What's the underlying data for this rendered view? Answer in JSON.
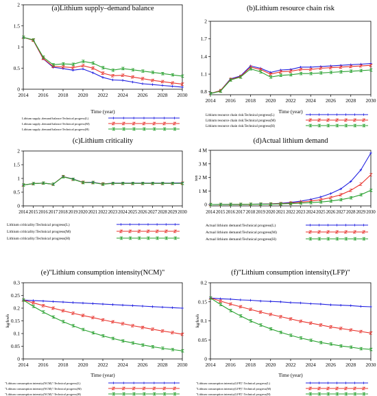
{
  "colors": {
    "L": "#1f1fe0",
    "M": "#e8312a",
    "H": "#27a02e",
    "axis": "#000000"
  },
  "chart_data": [
    {
      "id": "a",
      "type": "line",
      "title": "(a)Lithium supply–demand balance",
      "xlabel": "Time (year)",
      "ylabel": "",
      "xlim": [
        2014,
        2030
      ],
      "ylim": [
        0,
        2
      ],
      "xticks": [
        "2014",
        "2016",
        "2018",
        "2020",
        "2022",
        "2024",
        "2026",
        "2028",
        "2030"
      ],
      "yticks": [
        "0",
        "0.5",
        "1",
        "1.5",
        "2"
      ],
      "legend_position": "below",
      "series": [
        {
          "name": "Lithium supply–demand balance:Technical progress(L)",
          "key": "L",
          "marker": "1",
          "x": [
            2014,
            2015,
            2016,
            2017,
            2018,
            2019,
            2020,
            2021,
            2022,
            2023,
            2024,
            2025,
            2026,
            2027,
            2028,
            2029,
            2030
          ],
          "y": [
            1.23,
            1.16,
            0.72,
            0.52,
            0.49,
            0.45,
            0.48,
            0.39,
            0.28,
            0.22,
            0.21,
            0.17,
            0.13,
            0.11,
            0.09,
            0.07,
            0.05
          ]
        },
        {
          "name": "Lithium supply–demand balance:Technical progress(M)",
          "key": "M",
          "marker": "2",
          "x": [
            2014,
            2015,
            2016,
            2017,
            2018,
            2019,
            2020,
            2021,
            2022,
            2023,
            2024,
            2025,
            2026,
            2027,
            2028,
            2029,
            2030
          ],
          "y": [
            1.23,
            1.16,
            0.73,
            0.54,
            0.53,
            0.51,
            0.56,
            0.5,
            0.38,
            0.32,
            0.33,
            0.29,
            0.25,
            0.21,
            0.18,
            0.15,
            0.12
          ]
        },
        {
          "name": "Lithium supply–demand balance:Technical progress(H)",
          "key": "H",
          "marker": "3",
          "x": [
            2014,
            2015,
            2016,
            2017,
            2018,
            2019,
            2020,
            2021,
            2022,
            2023,
            2024,
            2025,
            2026,
            2027,
            2028,
            2029,
            2030
          ],
          "y": [
            1.23,
            1.17,
            0.76,
            0.58,
            0.6,
            0.59,
            0.66,
            0.62,
            0.51,
            0.45,
            0.49,
            0.46,
            0.43,
            0.4,
            0.37,
            0.34,
            0.31
          ]
        }
      ]
    },
    {
      "id": "b",
      "type": "line",
      "title": "(b)Lithium resource chain risk",
      "xlabel": "Time (year)",
      "ylabel": "",
      "xlim": [
        2014,
        2030
      ],
      "ylim": [
        0.75,
        2
      ],
      "xticks": [
        "2014",
        "2016",
        "2018",
        "2020",
        "2022",
        "2024",
        "2026",
        "2028",
        "2030"
      ],
      "yticks": [
        "0.8",
        "1.1",
        "1.4",
        "1.7",
        "2"
      ],
      "legend_position": "below",
      "series": [
        {
          "name": "Lithium resource chain risk:Technical progress(L)",
          "key": "L",
          "marker": "1",
          "x": [
            2014,
            2015,
            2016,
            2017,
            2018,
            2019,
            2020,
            2021,
            2022,
            2023,
            2024,
            2025,
            2026,
            2027,
            2028,
            2029,
            2030
          ],
          "y": [
            0.77,
            0.82,
            1.02,
            1.07,
            1.24,
            1.2,
            1.13,
            1.17,
            1.18,
            1.22,
            1.22,
            1.23,
            1.24,
            1.25,
            1.26,
            1.27,
            1.28
          ]
        },
        {
          "name": "Lithium resource chain risk:Technical progress(M)",
          "key": "M",
          "marker": "2",
          "x": [
            2014,
            2015,
            2016,
            2017,
            2018,
            2019,
            2020,
            2021,
            2022,
            2023,
            2024,
            2025,
            2026,
            2027,
            2028,
            2029,
            2030
          ],
          "y": [
            0.77,
            0.82,
            1.01,
            1.06,
            1.22,
            1.18,
            1.1,
            1.14,
            1.15,
            1.18,
            1.18,
            1.2,
            1.21,
            1.22,
            1.23,
            1.24,
            1.25
          ]
        },
        {
          "name": "Lithium resource chain risk:Technical progress(H)",
          "key": "H",
          "marker": "3",
          "x": [
            2014,
            2015,
            2016,
            2017,
            2018,
            2019,
            2020,
            2021,
            2022,
            2023,
            2024,
            2025,
            2026,
            2027,
            2028,
            2029,
            2030
          ],
          "y": [
            0.77,
            0.81,
            1.0,
            1.05,
            1.19,
            1.14,
            1.05,
            1.08,
            1.09,
            1.11,
            1.11,
            1.12,
            1.13,
            1.14,
            1.15,
            1.16,
            1.17
          ]
        }
      ]
    },
    {
      "id": "c",
      "type": "line",
      "title": "(c)Lithium criticality",
      "xlabel": "",
      "ylabel": "",
      "xlim": [
        2014,
        2030
      ],
      "ylim": [
        0,
        2
      ],
      "xticks": [
        "2014",
        "2015",
        "2016",
        "2017",
        "2018",
        "2019",
        "2020",
        "2021",
        "2022",
        "2023",
        "2024",
        "2025",
        "2026",
        "2027",
        "2028",
        "2029",
        "2030"
      ],
      "yticks": [
        "0",
        "0.5",
        "1",
        "1.5",
        "2"
      ],
      "legend_position": "below",
      "series": [
        {
          "name": "Lithium criticality:Technical progress(L)",
          "key": "L",
          "marker": "1",
          "x": [
            2014,
            2015,
            2016,
            2017,
            2018,
            2019,
            2020,
            2021,
            2022,
            2023,
            2024,
            2025,
            2026,
            2027,
            2028,
            2029,
            2030
          ],
          "y": [
            0.76,
            0.81,
            0.83,
            0.79,
            1.07,
            0.98,
            0.86,
            0.86,
            0.8,
            0.83,
            0.83,
            0.83,
            0.83,
            0.83,
            0.83,
            0.83,
            0.84
          ]
        },
        {
          "name": "Lithium criticality:Technical progress(M)",
          "key": "M",
          "marker": "2",
          "x": [
            2014,
            2015,
            2016,
            2017,
            2018,
            2019,
            2020,
            2021,
            2022,
            2023,
            2024,
            2025,
            2026,
            2027,
            2028,
            2029,
            2030
          ],
          "y": [
            0.76,
            0.81,
            0.83,
            0.79,
            1.07,
            0.97,
            0.86,
            0.85,
            0.8,
            0.82,
            0.82,
            0.82,
            0.82,
            0.82,
            0.82,
            0.82,
            0.83
          ]
        },
        {
          "name": "Lithium criticality:Technical progress(H)",
          "key": "H",
          "marker": "3",
          "x": [
            2014,
            2015,
            2016,
            2017,
            2018,
            2019,
            2020,
            2021,
            2022,
            2023,
            2024,
            2025,
            2026,
            2027,
            2028,
            2029,
            2030
          ],
          "y": [
            0.76,
            0.81,
            0.83,
            0.79,
            1.06,
            0.97,
            0.85,
            0.85,
            0.79,
            0.82,
            0.82,
            0.82,
            0.82,
            0.82,
            0.82,
            0.82,
            0.82
          ]
        }
      ]
    },
    {
      "id": "d",
      "type": "line",
      "title": "(d)Actual lithium demand",
      "xlabel": "",
      "ylabel": "ton",
      "xlim": [
        2014,
        2030
      ],
      "ylim": [
        -100000,
        4000000
      ],
      "xticks": [
        "2014",
        "2015",
        "2016",
        "2017",
        "2018",
        "2019",
        "2020",
        "2021",
        "2022",
        "2023",
        "2024",
        "2025",
        "2026",
        "2027",
        "2028",
        "2029",
        "2030"
      ],
      "yticks": [
        "0",
        "1 M",
        "2 M",
        "3 M",
        "4 M"
      ],
      "legend_position": "below",
      "series": [
        {
          "name": "Actual lithium demand:Technical progress(L)",
          "key": "L",
          "marker": "1",
          "x": [
            2014,
            2015,
            2016,
            2017,
            2018,
            2019,
            2020,
            2021,
            2022,
            2023,
            2024,
            2025,
            2026,
            2027,
            2028,
            2029,
            2030
          ],
          "y": [
            0,
            5000,
            10000,
            15000,
            25000,
            35000,
            50000,
            90000,
            160000,
            250000,
            380000,
            560000,
            810000,
            1150000,
            1700000,
            2550000,
            3800000
          ]
        },
        {
          "name": "Actual lithium demand:Technical progress(M)",
          "key": "M",
          "marker": "2",
          "x": [
            2014,
            2015,
            2016,
            2017,
            2018,
            2019,
            2020,
            2021,
            2022,
            2023,
            2024,
            2025,
            2026,
            2027,
            2028,
            2029,
            2030
          ],
          "y": [
            0,
            5000,
            10000,
            15000,
            22000,
            30000,
            40000,
            70000,
            110000,
            170000,
            250000,
            360000,
            510000,
            720000,
            1050000,
            1500000,
            2200000
          ]
        },
        {
          "name": "Actual lithium demand:Technical progress(H)",
          "key": "H",
          "marker": "3",
          "x": [
            2014,
            2015,
            2016,
            2017,
            2018,
            2019,
            2020,
            2021,
            2022,
            2023,
            2024,
            2025,
            2026,
            2027,
            2028,
            2029,
            2030
          ],
          "y": [
            0,
            4000,
            8000,
            12000,
            18000,
            22000,
            28000,
            45000,
            70000,
            100000,
            140000,
            190000,
            260000,
            360000,
            500000,
            720000,
            1050000
          ]
        }
      ]
    },
    {
      "id": "e",
      "type": "line",
      "title": "(e)\"Lithium consumption intensity(NCM)\"",
      "xlabel": "Time (year)",
      "ylabel": "kg/kwh",
      "xlim": [
        2014,
        2030
      ],
      "ylim": [
        0,
        0.3
      ],
      "xticks": [
        "2014",
        "2016",
        "2018",
        "2020",
        "2022",
        "2024",
        "2026",
        "2028",
        "2030"
      ],
      "yticks": [
        "0",
        "0.05",
        "0.1",
        "0.15",
        "0.2",
        "0.25",
        "0.3"
      ],
      "legend_position": "below",
      "series": [
        {
          "name": "\"Lithium consumption intensity(NCM)\":Technical progress(L)",
          "key": "L",
          "marker": "1",
          "x": [
            2014,
            2015,
            2016,
            2017,
            2018,
            2019,
            2020,
            2021,
            2022,
            2023,
            2024,
            2025,
            2026,
            2027,
            2028,
            2029,
            2030
          ],
          "y": [
            0.232,
            0.23,
            0.228,
            0.226,
            0.224,
            0.222,
            0.22,
            0.218,
            0.216,
            0.214,
            0.212,
            0.21,
            0.208,
            0.206,
            0.204,
            0.202,
            0.2
          ]
        },
        {
          "name": "\"Lithium consumption intensity(NCM)\":Technical progress(M)",
          "key": "M",
          "marker": "2",
          "x": [
            2014,
            2015,
            2016,
            2017,
            2018,
            2019,
            2020,
            2021,
            2022,
            2023,
            2024,
            2025,
            2026,
            2027,
            2028,
            2029,
            2030
          ],
          "y": [
            0.232,
            0.221,
            0.21,
            0.2,
            0.19,
            0.18,
            0.171,
            0.163,
            0.154,
            0.146,
            0.139,
            0.131,
            0.124,
            0.117,
            0.11,
            0.104,
            0.097
          ]
        },
        {
          "name": "\"Lithium consumption intensity(NCM)\":Technical progress(H)",
          "key": "H",
          "marker": "3",
          "x": [
            2014,
            2015,
            2016,
            2017,
            2018,
            2019,
            2020,
            2021,
            2022,
            2023,
            2024,
            2025,
            2026,
            2027,
            2028,
            2029,
            2030
          ],
          "y": [
            0.232,
            0.207,
            0.185,
            0.165,
            0.147,
            0.131,
            0.116,
            0.103,
            0.091,
            0.081,
            0.071,
            0.063,
            0.055,
            0.048,
            0.042,
            0.037,
            0.032
          ]
        }
      ]
    },
    {
      "id": "f",
      "type": "line",
      "title": "(f)\"Lithium consumption intensity(LFP)\"",
      "xlabel": "Time (year)",
      "ylabel": "kg/kwh",
      "xlim": [
        2014,
        2030
      ],
      "ylim": [
        0,
        0.2
      ],
      "xticks": [
        "2014",
        "2016",
        "2018",
        "2020",
        "2022",
        "2024",
        "2026",
        "2028",
        "2030"
      ],
      "yticks": [
        "0",
        "0.05",
        "0.1",
        "0.15",
        "0.2"
      ],
      "legend_position": "below",
      "series": [
        {
          "name": "\"Lithium consumption intensity(LFP)\":Technical progress(L)",
          "key": "L",
          "marker": "1",
          "x": [
            2014,
            2015,
            2016,
            2017,
            2018,
            2019,
            2020,
            2021,
            2022,
            2023,
            2024,
            2025,
            2026,
            2027,
            2028,
            2029,
            2030
          ],
          "y": [
            0.16,
            0.158,
            0.157,
            0.155,
            0.154,
            0.152,
            0.151,
            0.15,
            0.148,
            0.147,
            0.145,
            0.144,
            0.142,
            0.141,
            0.14,
            0.138,
            0.137
          ]
        },
        {
          "name": "\"Lithium consumption intensity(LFP)\":Technical progress(M)",
          "key": "M",
          "marker": "2",
          "x": [
            2014,
            2015,
            2016,
            2017,
            2018,
            2019,
            2020,
            2021,
            2022,
            2023,
            2024,
            2025,
            2026,
            2027,
            2028,
            2029,
            2030
          ],
          "y": [
            0.16,
            0.152,
            0.144,
            0.137,
            0.13,
            0.123,
            0.117,
            0.111,
            0.105,
            0.099,
            0.094,
            0.089,
            0.084,
            0.08,
            0.076,
            0.072,
            0.068
          ]
        },
        {
          "name": "\"Lithium consumption intensity(LFP)\":Technical progress(H)",
          "key": "H",
          "marker": "3",
          "x": [
            2014,
            2015,
            2016,
            2017,
            2018,
            2019,
            2020,
            2021,
            2022,
            2023,
            2024,
            2025,
            2026,
            2027,
            2028,
            2029,
            2030
          ],
          "y": [
            0.16,
            0.143,
            0.127,
            0.113,
            0.1,
            0.089,
            0.079,
            0.07,
            0.062,
            0.055,
            0.049,
            0.043,
            0.039,
            0.034,
            0.031,
            0.027,
            0.025
          ]
        }
      ]
    }
  ]
}
